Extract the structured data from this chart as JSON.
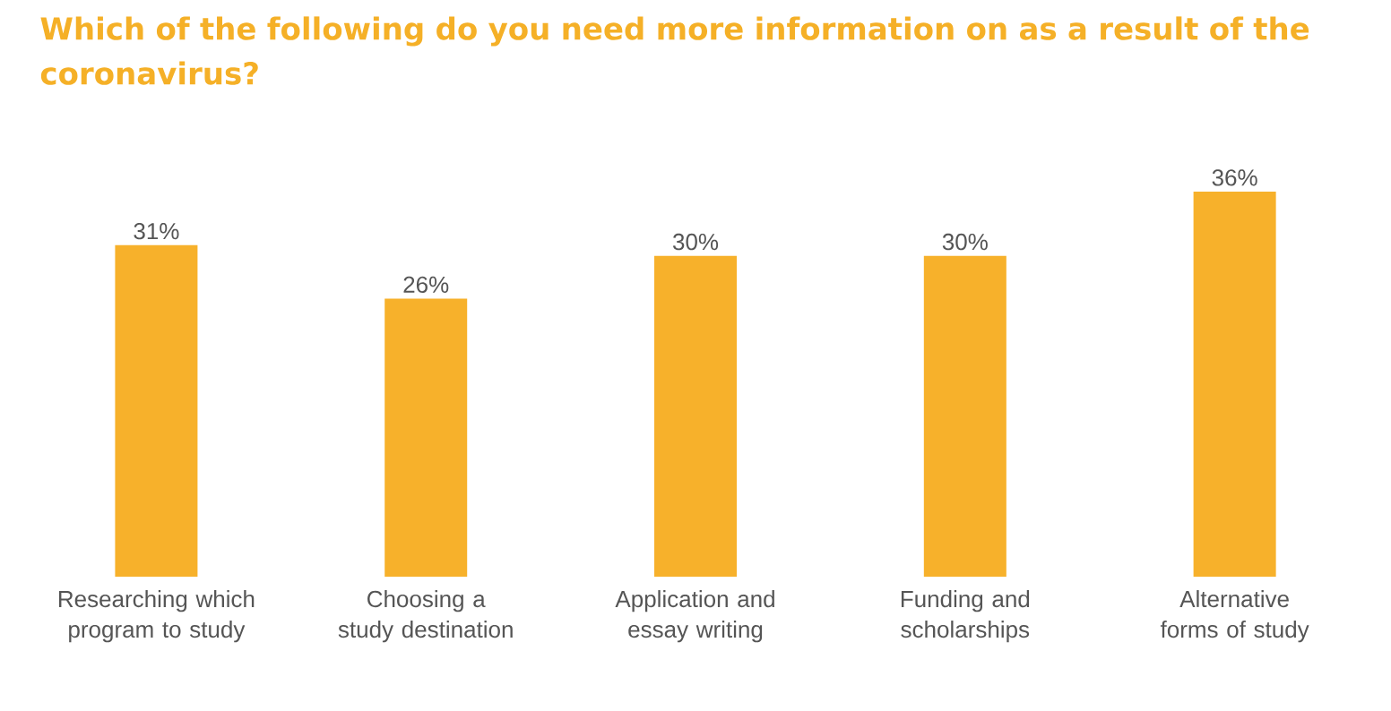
{
  "chart_data": {
    "type": "bar",
    "title": "Which of the following do you need more information on as a result of the coronavirus?",
    "categories": [
      "Researching which program to study",
      "Choosing a study destination",
      "Application and essay writing",
      "Funding and scholarships",
      "Alternative forms of study"
    ],
    "values": [
      31,
      26,
      30,
      30,
      36
    ],
    "value_labels": [
      "31%",
      "26%",
      "30%",
      "30%",
      "36%"
    ],
    "color": "#f7b12b"
  }
}
